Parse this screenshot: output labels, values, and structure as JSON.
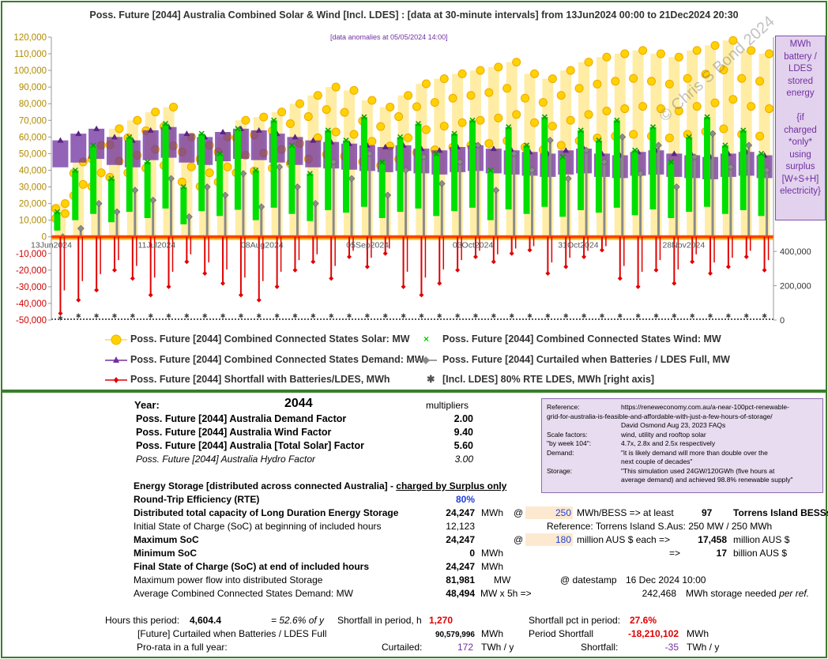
{
  "chart_data": {
    "type": "scatter",
    "title": "Poss. Future [2044] Australia Combined Solar & Wind [Incl. LDES] :  [data at 30-minute intervals] from 13Jun2024 00:00 to 21Dec2024 20:30",
    "annotation": "[data anomalies at 05/05/2024 14:00]",
    "watermark": "© Chris S Bond 2024",
    "x_tick_labels": [
      "13Jun2024",
      "11Jul2024",
      "08Aug2024",
      "05Sep2024",
      "03Oct2024",
      "31Oct2024",
      "28Nov2024"
    ],
    "x_tick_dates": [
      "2024-06-13",
      "2024-07-11",
      "2024-08-08",
      "2024-09-05",
      "2024-10-03",
      "2024-10-31",
      "2024-11-28"
    ],
    "xlim": [
      "2024-06-13 00:00",
      "2024-12-21 20:30"
    ],
    "ylim": [
      -50000,
      120000
    ],
    "y_tick_labels": [
      "120,000",
      "110,000",
      "100,000",
      "90,000",
      "80,000",
      "70,000",
      "60,000",
      "50,000",
      "40,000",
      "30,000",
      "20,000",
      "10,000",
      "0",
      "-10,000",
      "-20,000",
      "-30,000",
      "-40,000",
      "-50,000"
    ],
    "y2_tick_labels": [
      "400,000",
      "200,000",
      "0"
    ],
    "y2_ticks": [
      400000,
      200000,
      0
    ],
    "right_axis_label": [
      "MWh",
      "battery /",
      "LDES",
      "stored",
      "energy",
      "",
      "{if",
      "charged",
      "*only*",
      "using",
      "surplus",
      "[W+S+H]",
      "electricity}"
    ],
    "grid": false,
    "legend_position": "bottom",
    "series": [
      {
        "name": "Poss. Future [2044] Combined Connected States Solar: MW",
        "color": "#ffc000",
        "marker": "circle",
        "values": [
          20000,
          45000,
          55000,
          65000,
          70000,
          75000,
          78000,
          60000,
          55000,
          60000,
          70000,
          72000,
          75000,
          80000,
          85000,
          90000,
          88000,
          82000,
          78000,
          85000,
          92000,
          95000,
          98000,
          100000,
          102000,
          105000,
          98000,
          95000,
          100000,
          105000,
          108000,
          110000,
          112000,
          110000,
          108000,
          112000,
          115000,
          118000,
          112000,
          110000
        ]
      },
      {
        "name": "Poss. Future [2044] Combined Connected States Wind: MW",
        "color": "#00e000",
        "marker": "x",
        "values": [
          15000,
          40000,
          55000,
          35000,
          60000,
          45000,
          68000,
          30000,
          62000,
          50000,
          65000,
          40000,
          70000,
          55000,
          38000,
          64000,
          58000,
          72000,
          45000,
          60000,
          68000,
          50000,
          62000,
          70000,
          40000,
          66000,
          55000,
          72000,
          48000,
          64000,
          58000,
          70000,
          52000,
          66000,
          45000,
          60000,
          72000,
          55000,
          64000,
          50000
        ]
      },
      {
        "name": "Poss. Future [2044] Combined Connected States Demand: MW",
        "color": "#7030a0",
        "marker": "triangle",
        "values": [
          58000,
          62000,
          65000,
          60000,
          58000,
          64000,
          66000,
          62000,
          60000,
          63000,
          65000,
          64000,
          62000,
          60000,
          58000,
          57000,
          56000,
          55000,
          54000,
          55000,
          53000,
          52000,
          54000,
          55000,
          53000,
          52000,
          51000,
          50000,
          52000,
          53000,
          50000,
          49000,
          51000,
          52000,
          50000,
          49000,
          48000,
          50000,
          51000,
          49000
        ]
      },
      {
        "name": "Poss. Future [2044] Curtailed when Batteries / LDES Full, MW",
        "color": "#7f7f7f",
        "marker": "diamond",
        "values": [
          0,
          5000,
          20000,
          15000,
          28000,
          22000,
          35000,
          12000,
          30000,
          25000,
          38000,
          18000,
          42000,
          30000,
          20000,
          45000,
          35000,
          50000,
          25000,
          40000,
          48000,
          32000,
          45000,
          55000,
          28000,
          50000,
          40000,
          58000,
          35000,
          52000,
          45000,
          60000,
          38000,
          55000,
          30000,
          48000,
          62000,
          42000,
          55000,
          40000
        ]
      },
      {
        "name": "Poss. Future [2044]  Shortfall with Batteries/LDES, MWh",
        "color": "#e00000",
        "marker": "diamond",
        "values": [
          -46000,
          -38000,
          -32000,
          -20000,
          -25000,
          -35000,
          -30000,
          -15000,
          -22000,
          -28000,
          -35000,
          -38000,
          -30000,
          -20000,
          -15000,
          -25000,
          -12000,
          -18000,
          -10000,
          -30000,
          -35000,
          -28000,
          -20000,
          -12000,
          -15000,
          -10000,
          -8000,
          -22000,
          -18000,
          -12000,
          -8000,
          -25000,
          -30000,
          -20000,
          -28000,
          -15000,
          -22000,
          -18000,
          -12000,
          -20000
        ]
      },
      {
        "name": "[Incl. LDES] 80% RTE LDES, MWh [right axis]",
        "color": "#404040",
        "marker": "asterisk",
        "axis": "right",
        "values": [
          12123,
          24247,
          24247,
          24247,
          24247,
          24247,
          24247,
          24247,
          24247,
          24247,
          24247,
          24247,
          24247,
          24247,
          24247,
          24247,
          24247,
          24247,
          24247,
          24247,
          24247,
          24247,
          24247,
          24247,
          24247,
          24247,
          24247,
          24247,
          24247,
          24247,
          24247,
          24247,
          24247,
          24247,
          24247,
          24247,
          24247,
          24247,
          24247,
          24247
        ]
      }
    ]
  },
  "info": {
    "year_label": "Year:",
    "year": "2044",
    "multipliers_label": "multipliers",
    "factors": [
      {
        "label": "Poss. Future [2044]  Australia Demand Factor",
        "value": "2.00"
      },
      {
        "label": "Poss. Future [2044]  Australia Wind Factor",
        "value": "9.40"
      },
      {
        "label": "Poss. Future [2044]  Australia [Total Solar] Factor",
        "value": "5.60"
      },
      {
        "label": "Poss. Future [2044]  Australia Hydro Factor",
        "value": "3.00"
      }
    ],
    "storage_heading_a": "Energy Storage [distributed across connected Australia] - ",
    "storage_heading_b": "charged by Surplus only",
    "rte_label": "Round-Trip Efficiency (RTE)",
    "rte_value": "80%",
    "capacity_label": "Distributed total capacity of Long Duration Energy Storage",
    "capacity_value": "24,247",
    "capacity_unit": "MWh",
    "at1": "@",
    "bess_size": "250",
    "bess_text": "MWh/BESS => at least",
    "bess_count": "97",
    "bess_name": "Torrens Island BESSs",
    "initial_soc_label": "Initial State of Charge (SoC) at beginning of included hours",
    "initial_soc_value": "12,123",
    "torrens_ref": "Reference: Torrens Island S.Aus: 250 MW / 250 MWh",
    "max_soc_label": "Maximum SoC",
    "max_soc_value": "24,247",
    "at2": "@",
    "cost_each": "180",
    "cost_text": "million AUS $ each =>",
    "cost_total": "17,458",
    "cost_unit": "million AUS $",
    "min_soc_label": "Minimum SoC",
    "min_soc_value": "0",
    "min_soc_unit": "MWh",
    "arrow": "=>",
    "billions": "17",
    "billions_unit": "billion AUS $",
    "final_soc_label": "Final State of Charge (SoC) at end of included hours",
    "final_soc_value": "24,247",
    "final_soc_unit": "MWh",
    "max_flow_label": "Maximum power flow into distributed Storage",
    "max_flow_value": "81,981",
    "max_flow_unit": "MW",
    "datestamp_label": "@ datestamp",
    "datestamp": "16 Dec 2024 10:00",
    "avg_demand_label": "Average Combined Connected States Demand: MW",
    "avg_demand_value": "48,494",
    "avg_demand_unit": "MW  x 5h =>",
    "storage_needed": "242,468",
    "storage_needed_text": "MWh storage needed",
    "per_ref": "per ref.",
    "hours_label": "Hours this period:",
    "hours_value": "4,604.4",
    "pct_of_y": "= 52.6% of y",
    "shortfall_hours_label": "Shortfall in period, h",
    "shortfall_hours": "1,270",
    "shortfall_pct_label": "Shortfall pct in period:",
    "shortfall_pct": "27.6%",
    "curtailed_label": "[Future]  Curtailed when Batteries / LDES Full",
    "curtailed_value": "90,579,996",
    "curtailed_unit": "MWh",
    "period_shortfall_label": "Period Shortfall",
    "period_shortfall": "-18,210,102",
    "period_shortfall_unit": "MWh",
    "prorata_label": "Pro-rata in a full year:",
    "curtailed_short": "Curtailed:",
    "curtailed_twh": "172",
    "twh1": "TWh / y",
    "shortfall_short": "Shortfall:",
    "shortfall_twh": "-35",
    "twh2": "TWh / y"
  },
  "reference": {
    "rows": [
      {
        "k": "Reference:",
        "v": "https://reneweconomy.com.au/a-near-100pct-renewable-"
      },
      {
        "k": "",
        "v": "grid-for-australia-is-feasible-and-affordable-with-just-a-few-hours-of-storage/"
      },
      {
        "k": "",
        "v": "David Osmond          Aug 23, 2023          FAQs"
      },
      {
        "k": "Scale factors:",
        "v": "wind, utility and rooftop solar"
      },
      {
        "k": "\"by week 104\":",
        "v": "4.7x, 2.8x and 2.5x respectively"
      },
      {
        "k": "Demand:",
        "v": "\"it is likely demand will more than double over the"
      },
      {
        "k": "",
        "v": "next couple of decades\""
      },
      {
        "k": "Storage:",
        "v": "\"This simulation used 24GW/120GWh (five hours at"
      },
      {
        "k": "",
        "v": "average demand) and achieved 98.8% renewable supply\""
      }
    ]
  }
}
